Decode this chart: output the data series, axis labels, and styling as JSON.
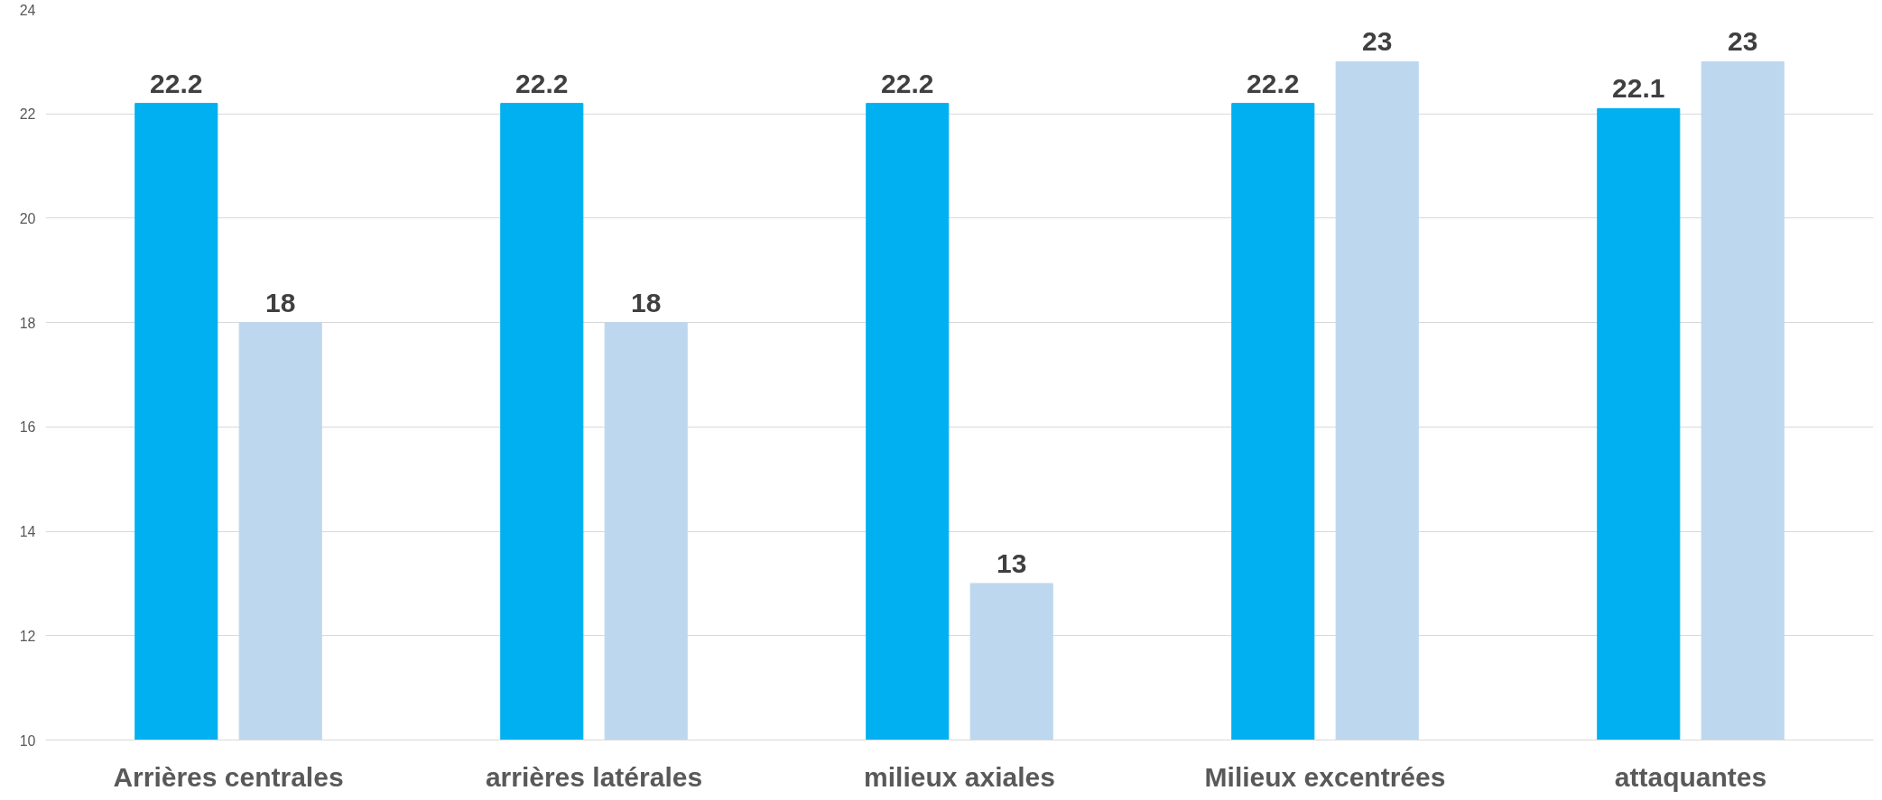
{
  "chart_data": {
    "type": "bar",
    "categories": [
      "Arrières centrales",
      "arrières latérales",
      "milieux axiales",
      "Milieux excentrées",
      "attaquantes"
    ],
    "series": [
      {
        "color": "#00b0f0",
        "values": [
          22.2,
          22.2,
          22.2,
          22.2,
          22.1
        ]
      },
      {
        "color": "#bdd7ee",
        "values": [
          18,
          18,
          13,
          23,
          23
        ]
      }
    ],
    "ylim": [
      10,
      24
    ],
    "yticks": [
      10,
      12,
      14,
      16,
      18,
      20,
      22,
      24
    ],
    "grid": "y",
    "data_labels": true
  }
}
